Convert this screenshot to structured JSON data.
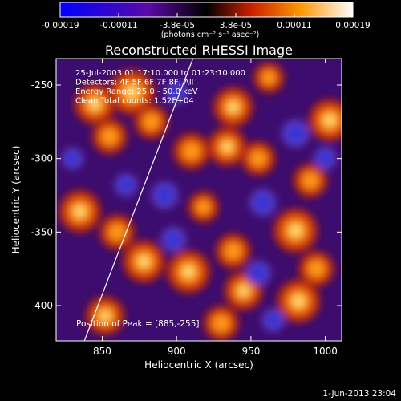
{
  "chart_data": {
    "type": "heatmap",
    "title": "Reconstructed RHESSI Image",
    "xlabel": "Heliocentric X (arcsec)",
    "ylabel": "Heliocentric Y (arcsec)",
    "xlim": [
      819,
      1011
    ],
    "ylim": [
      -424,
      -232
    ],
    "xticks": [
      850,
      900,
      950,
      1000
    ],
    "yticks": [
      -250,
      -300,
      -350,
      -400
    ],
    "colorbar": {
      "min": -0.00019,
      "max": 0.00019,
      "tick_labels": [
        "-0.00019",
        "-0.00011",
        "-3.8e-05",
        "3.8e-05",
        "0.00011",
        "0.00019"
      ],
      "unit_label": "(photons cm⁻² s⁻¹ asec⁻²)"
    },
    "annotations": [
      "25-Jul-2003 01:17:10.000 to 01:23:10.000",
      "Detectors: 4F 5F 6F 7F 8F, All",
      "Energy Range: 25.0 - 50.0 keV",
      "Clean     Total counts: 1.52E+04"
    ],
    "peak_label": "Position of Peak = [885,-255]",
    "peak": [
      885,
      -255
    ],
    "sources": [
      {
        "x": 870,
        "y": -255,
        "v": 1.0
      },
      {
        "x": 845,
        "y": -263,
        "v": 0.8
      },
      {
        "x": 855,
        "y": -285,
        "v": 0.55
      },
      {
        "x": 883,
        "y": -275,
        "v": 0.5
      },
      {
        "x": 938,
        "y": -265,
        "v": 0.75
      },
      {
        "x": 1003,
        "y": -274,
        "v": 0.85
      },
      {
        "x": 962,
        "y": -245,
        "v": 0.35
      },
      {
        "x": 910,
        "y": -295,
        "v": 0.6
      },
      {
        "x": 934,
        "y": -292,
        "v": 0.7
      },
      {
        "x": 955,
        "y": -300,
        "v": 0.5
      },
      {
        "x": 835,
        "y": -336,
        "v": 0.85
      },
      {
        "x": 860,
        "y": -350,
        "v": 0.55
      },
      {
        "x": 878,
        "y": -370,
        "v": 0.85
      },
      {
        "x": 908,
        "y": -377,
        "v": 0.9
      },
      {
        "x": 938,
        "y": -363,
        "v": 0.55
      },
      {
        "x": 980,
        "y": -349,
        "v": 0.95
      },
      {
        "x": 994,
        "y": -375,
        "v": 0.55
      },
      {
        "x": 982,
        "y": -397,
        "v": 0.9
      },
      {
        "x": 945,
        "y": -390,
        "v": 0.7
      },
      {
        "x": 930,
        "y": -412,
        "v": 0.55
      },
      {
        "x": 852,
        "y": -407,
        "v": 0.7
      },
      {
        "x": 990,
        "y": -315,
        "v": 0.5
      },
      {
        "x": 918,
        "y": -333,
        "v": 0.35
      },
      {
        "x": 958,
        "y": -330,
        "v": -0.55
      },
      {
        "x": 980,
        "y": -283,
        "v": -0.6
      },
      {
        "x": 892,
        "y": -325,
        "v": -0.55
      },
      {
        "x": 866,
        "y": -318,
        "v": -0.35
      },
      {
        "x": 898,
        "y": -355,
        "v": -0.45
      },
      {
        "x": 955,
        "y": -378,
        "v": -0.45
      },
      {
        "x": 1000,
        "y": -300,
        "v": -0.35
      },
      {
        "x": 900,
        "y": -255,
        "v": -0.35
      },
      {
        "x": 965,
        "y": -410,
        "v": -0.35
      },
      {
        "x": 830,
        "y": -300,
        "v": -0.3
      }
    ],
    "limb_line": {
      "x": [
        838,
        911
      ],
      "y": [
        -424,
        -232
      ]
    }
  },
  "footer": {
    "timestamp": "1-Jun-2013 23:04"
  }
}
